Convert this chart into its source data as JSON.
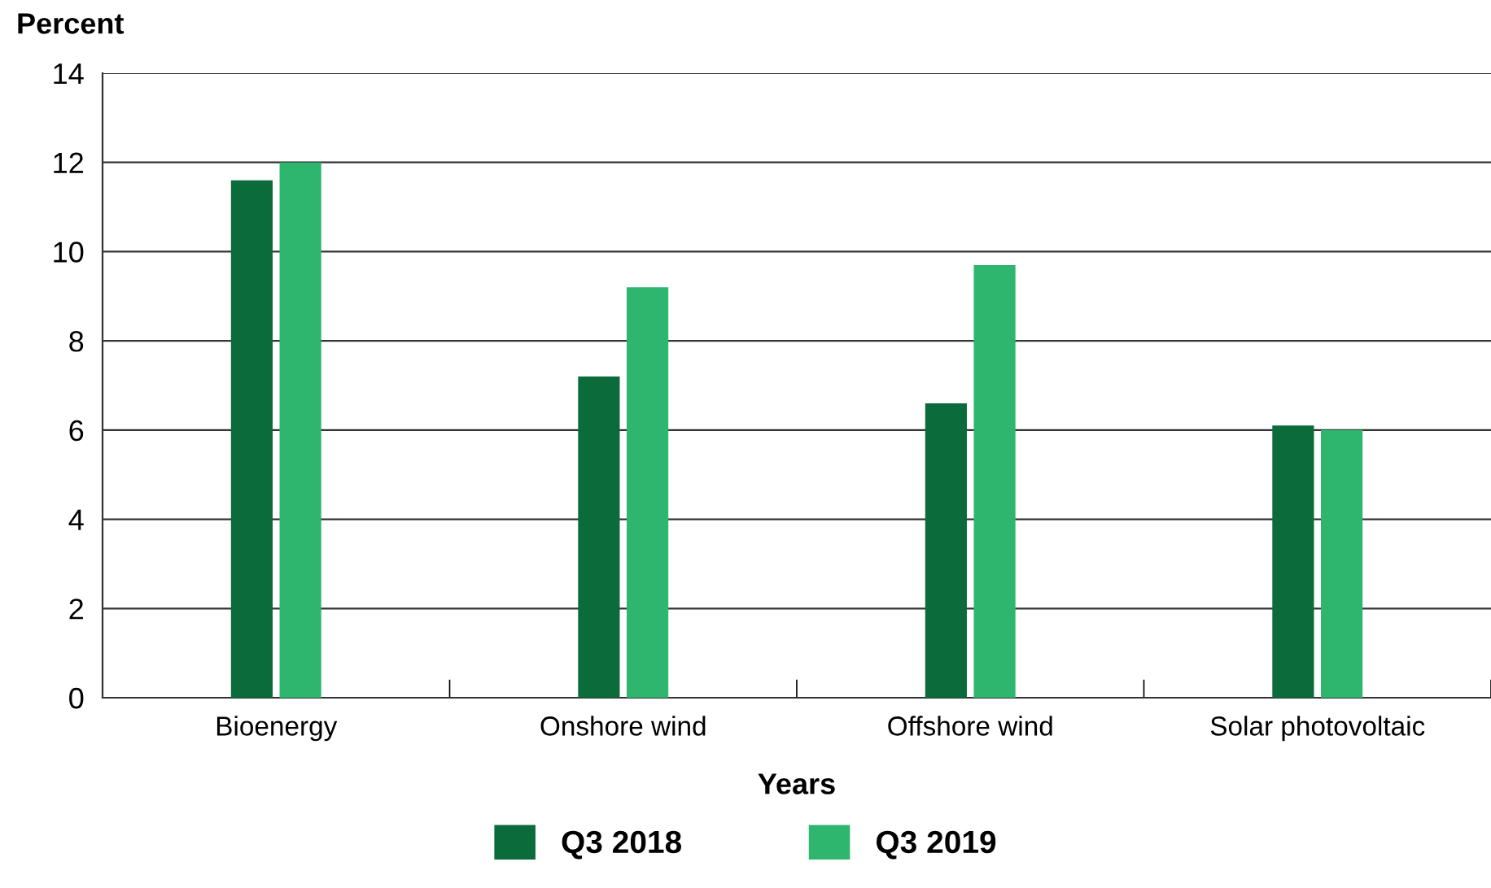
{
  "chart_data": {
    "type": "bar",
    "ylabel": "Percent",
    "xlabel": "Years",
    "categories": [
      "Bioenergy",
      "Onshore wind",
      "Offshore wind",
      "Solar photovoltaic"
    ],
    "series": [
      {
        "name": "Q3 2018",
        "color": "#0b6b3a",
        "values": [
          11.6,
          7.2,
          6.6,
          6.1
        ]
      },
      {
        "name": "Q3 2019",
        "color": "#2eb56e",
        "values": [
          12.0,
          9.2,
          9.7,
          6.0
        ]
      }
    ],
    "ylim": [
      0,
      14
    ],
    "yticks": [
      0,
      2,
      4,
      6,
      8,
      10,
      12,
      14
    ],
    "grid": "y",
    "legend": "bottom"
  }
}
